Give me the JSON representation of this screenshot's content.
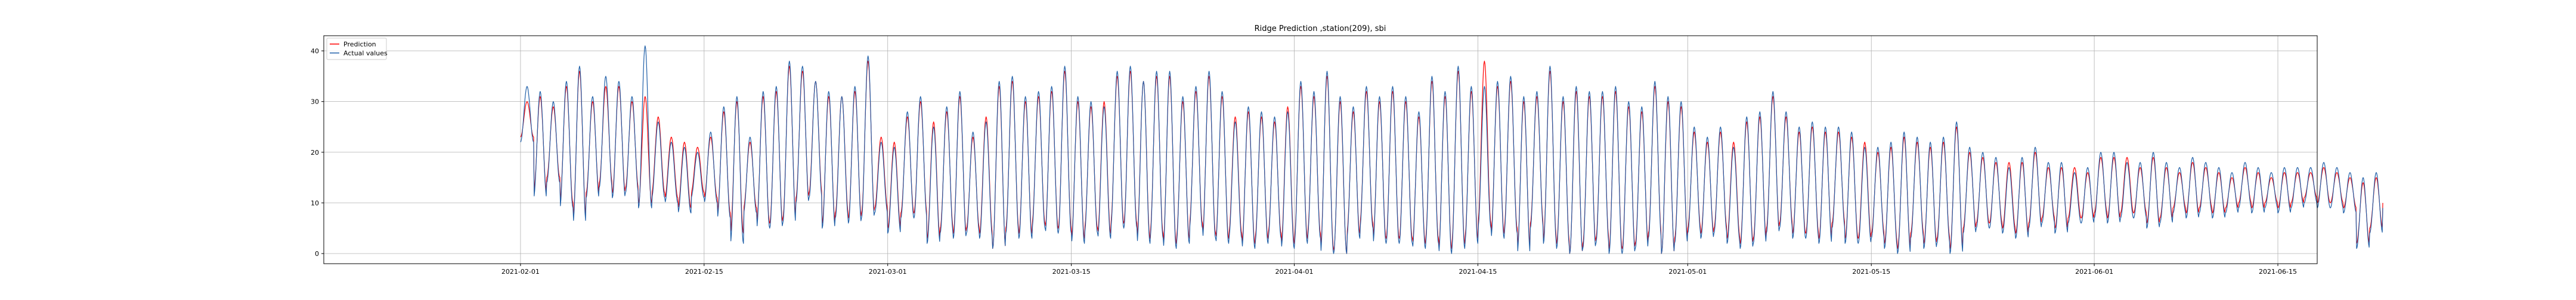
{
  "chart_data": {
    "type": "line",
    "title": "Ridge Prediction ,station(209), sbi",
    "xlabel": "",
    "ylabel": "",
    "x_range": [
      "2021-01-17",
      "2021-06-18"
    ],
    "ylim": [
      -2,
      43
    ],
    "x_ticks": [
      "2021-02-01",
      "2021-02-15",
      "2021-03-01",
      "2021-03-15",
      "2021-04-01",
      "2021-04-15",
      "2021-05-01",
      "2021-05-15",
      "2021-06-01",
      "2021-06-15"
    ],
    "y_ticks": [
      0,
      10,
      20,
      30,
      40
    ],
    "grid": true,
    "legend": "top-left",
    "data_start": "2021-02-01",
    "data_end": "2021-06-11",
    "series": [
      {
        "name": "Prediction",
        "color": "#ff0000",
        "daily_max": [
          30,
          31,
          29,
          33,
          36,
          30,
          33,
          33,
          30,
          31,
          27,
          23,
          22,
          21,
          23,
          28,
          30,
          22,
          31,
          32,
          37,
          36,
          34,
          31,
          31,
          32,
          38,
          23,
          22,
          27,
          30,
          26,
          28,
          31,
          23,
          27,
          33,
          34,
          30,
          31,
          32,
          36,
          30,
          29,
          30,
          35,
          36,
          34,
          35,
          35,
          30,
          32,
          35,
          31,
          27,
          28,
          27,
          26,
          29,
          33,
          31,
          35,
          30,
          28,
          32,
          30,
          32,
          30,
          27,
          34,
          31,
          36,
          32,
          38,
          33,
          34,
          30,
          31,
          36,
          30,
          32,
          31,
          31,
          32,
          29,
          28,
          33,
          30,
          29,
          24,
          22,
          24,
          22,
          26,
          27,
          31,
          27,
          24,
          25,
          24,
          24,
          23,
          22,
          20,
          21,
          23,
          22,
          21,
          22,
          25,
          20,
          19,
          18,
          18,
          18,
          20,
          17,
          17,
          17,
          16,
          19,
          19,
          19,
          17,
          19,
          17,
          16,
          18,
          17,
          16,
          15,
          17,
          16,
          15,
          16,
          16,
          16,
          17,
          16,
          15,
          14,
          15,
          16
        ],
        "daily_min": [
          23,
          12,
          15,
          10,
          7,
          12,
          14,
          12,
          13,
          10,
          12,
          11,
          9,
          12,
          11,
          8,
          4,
          9,
          6,
          6,
          7,
          11,
          12,
          6,
          8,
          7,
          8,
          9,
          5,
          8,
          8,
          3,
          5,
          4,
          5,
          4,
          1,
          5,
          4,
          6,
          5,
          5,
          3,
          5,
          4,
          6,
          6,
          3,
          4,
          2,
          3,
          6,
          4,
          3,
          4,
          2,
          3,
          4,
          2,
          3,
          4,
          1,
          0,
          4,
          6,
          3,
          3,
          3,
          2,
          3,
          1,
          2,
          3,
          6,
          4,
          5,
          1,
          6,
          3,
          2,
          0,
          2,
          3,
          1,
          1,
          2,
          4,
          0,
          3,
          5,
          4,
          5,
          3,
          2,
          3,
          5,
          6,
          4,
          4,
          3,
          6,
          3,
          3,
          4,
          2,
          1,
          4,
          2,
          3,
          1,
          5,
          6,
          6,
          5,
          4,
          6,
          7,
          5,
          7,
          7,
          8,
          7,
          8,
          8,
          6,
          7,
          9,
          8,
          9,
          8,
          9,
          10,
          9,
          10,
          9,
          10,
          11,
          10,
          10,
          9,
          2,
          5,
          10
        ]
      },
      {
        "name": "Actual values",
        "color": "#1f5fa8",
        "daily_max": [
          33,
          32,
          30,
          34,
          37,
          31,
          35,
          34,
          31,
          41,
          26,
          22,
          21,
          20,
          24,
          29,
          31,
          23,
          32,
          33,
          38,
          37,
          34,
          32,
          31,
          33,
          39,
          22,
          21,
          28,
          31,
          25,
          29,
          32,
          24,
          26,
          34,
          35,
          31,
          32,
          33,
          37,
          31,
          30,
          29,
          36,
          37,
          34,
          36,
          36,
          31,
          33,
          36,
          32,
          26,
          29,
          28,
          27,
          28,
          34,
          32,
          36,
          31,
          29,
          33,
          31,
          33,
          31,
          28,
          35,
          32,
          37,
          33,
          33,
          34,
          35,
          31,
          32,
          37,
          31,
          33,
          32,
          32,
          33,
          30,
          29,
          34,
          31,
          30,
          25,
          23,
          25,
          21,
          27,
          28,
          32,
          28,
          25,
          26,
          25,
          25,
          24,
          21,
          21,
          22,
          24,
          23,
          22,
          23,
          26,
          21,
          20,
          19,
          17,
          19,
          21,
          18,
          18,
          16,
          17,
          20,
          20,
          18,
          18,
          20,
          18,
          17,
          19,
          18,
          17,
          16,
          18,
          17,
          16,
          17,
          17,
          17,
          18,
          17,
          16,
          15,
          16,
          15
        ],
        "daily_min": [
          22,
          11,
          14,
          9,
          6,
          11,
          13,
          11,
          12,
          9,
          11,
          10,
          8,
          11,
          10,
          7,
          2,
          8,
          5,
          5,
          6,
          10,
          11,
          5,
          7,
          6,
          7,
          8,
          4,
          7,
          7,
          2,
          4,
          3,
          4,
          3,
          1,
          4,
          3,
          5,
          4,
          4,
          2,
          4,
          3,
          5,
          5,
          2,
          3,
          1,
          2,
          5,
          3,
          2,
          3,
          1,
          2,
          3,
          1,
          2,
          3,
          0,
          0,
          3,
          5,
          2,
          2,
          2,
          1,
          2,
          0,
          1,
          2,
          5,
          3,
          4,
          0,
          5,
          2,
          1,
          0,
          1,
          2,
          0,
          0,
          1,
          3,
          0,
          2,
          4,
          3,
          4,
          2,
          1,
          2,
          4,
          5,
          3,
          3,
          2,
          5,
          2,
          2,
          3,
          1,
          0,
          3,
          1,
          2,
          0,
          4,
          5,
          5,
          4,
          3,
          5,
          6,
          4,
          6,
          6,
          7,
          6,
          7,
          7,
          5,
          6,
          8,
          7,
          8,
          7,
          8,
          9,
          8,
          9,
          8,
          9,
          10,
          9,
          9,
          8,
          1,
          4,
          9
        ]
      }
    ]
  }
}
